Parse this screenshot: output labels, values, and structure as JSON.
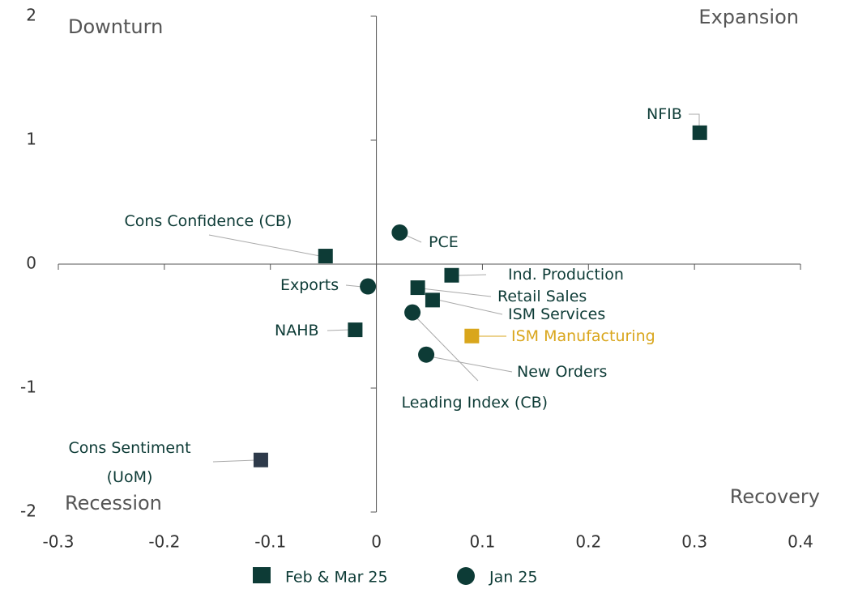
{
  "chart_data": {
    "type": "scatter",
    "annotations": [
      "Downturn",
      "Expansion",
      "Recession",
      "Recovery"
    ],
    "xlim": [
      -0.3,
      0.4
    ],
    "xticks": [
      -0.3,
      -0.2,
      -0.1,
      0,
      0.1,
      0.2,
      0.3,
      0.4
    ],
    "ylim": [
      -2,
      2
    ],
    "yticks": [
      -2,
      -1,
      0,
      1,
      2
    ],
    "series": [
      {
        "name": "Feb & Mar 25",
        "marker": "square",
        "color": "#0d3b36",
        "labels": [
          "NFIB",
          "Cons Confidence (CB)",
          "Ind. Production",
          "Retail Sales",
          "ISM Services",
          "ISM Manufacturing",
          "NAHB",
          "Cons Sentiment (UoM)"
        ],
        "point_colors": [
          "#0d3b36",
          "#0d3b36",
          "#0d3b36",
          "#0d3b36",
          "#0d3b36",
          "#d9a61c",
          "#0d3b36",
          "#2e3a4a"
        ],
        "x": [
          0.305,
          -0.048,
          0.071,
          0.039,
          0.053,
          0.09,
          -0.02,
          -0.109
        ],
        "values": [
          1.06,
          0.065,
          -0.09,
          -0.19,
          -0.29,
          -0.58,
          -0.53,
          -1.58
        ]
      },
      {
        "name": "Jan 25",
        "marker": "circle",
        "color": "#0d3b36",
        "labels": [
          "PCE",
          "Exports",
          "Leading Index (CB)",
          "New Orders"
        ],
        "point_colors": [
          "#0d3b36",
          "#0d3b36",
          "#0d3b36",
          "#0d3b36"
        ],
        "x": [
          0.022,
          -0.008,
          0.034,
          0.047
        ],
        "values": [
          0.255,
          -0.18,
          -0.39,
          -0.73
        ]
      }
    ]
  }
}
